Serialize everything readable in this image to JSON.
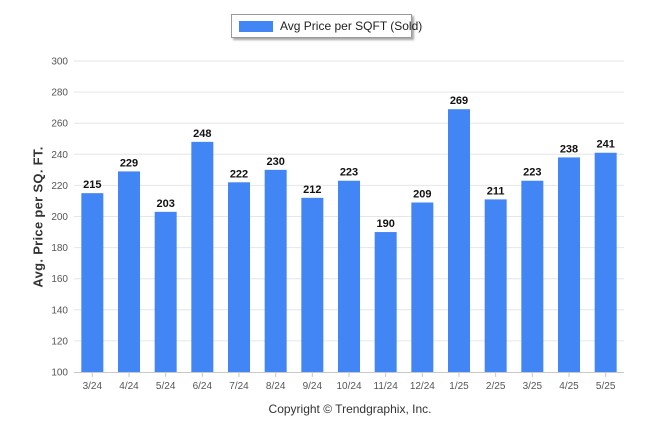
{
  "chart_data": {
    "type": "bar",
    "legend": {
      "label": "Avg Price per SQFT (Sold)",
      "position": "top-center"
    },
    "ylabel": "Avg. Price per SQ. FT.",
    "xlabel": "Copyright © Trendgraphix, Inc.",
    "ylim": [
      100,
      300
    ],
    "yticks": [
      100,
      120,
      140,
      160,
      180,
      200,
      220,
      240,
      260,
      280,
      300
    ],
    "grid": true,
    "categories": [
      "3/24",
      "4/24",
      "5/24",
      "6/24",
      "7/24",
      "8/24",
      "9/24",
      "10/24",
      "11/24",
      "12/24",
      "1/25",
      "2/25",
      "3/25",
      "4/25",
      "5/25"
    ],
    "series": [
      {
        "name": "Avg Price per SQFT (Sold)",
        "values": [
          215,
          229,
          203,
          248,
          222,
          230,
          212,
          223,
          190,
          209,
          269,
          211,
          223,
          238,
          241
        ],
        "color": "#4285f4"
      }
    ]
  }
}
